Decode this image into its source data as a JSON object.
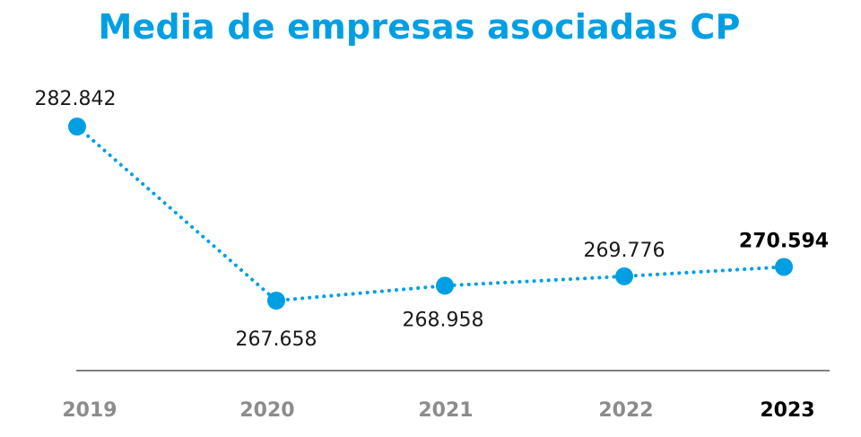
{
  "chart_data": {
    "type": "line",
    "title": "Media de empresas asociadas CP",
    "categories": [
      "2019",
      "2020",
      "2021",
      "2022",
      "2023"
    ],
    "values": [
      282842,
      267658,
      268958,
      269776,
      270594
    ],
    "data_labels": [
      "282.842",
      "267.658",
      "268.958",
      "269.776",
      "270.594"
    ],
    "highlight_category": "2023",
    "line_style": "dotted",
    "grid": false,
    "legend": "none",
    "xlabel": "",
    "ylabel": ""
  },
  "colors": {
    "accent": "#009fe3",
    "title": "#009fe3",
    "tick_muted": "#8c8c8c",
    "tick_highlight": "#000000",
    "axis": "#333333"
  }
}
